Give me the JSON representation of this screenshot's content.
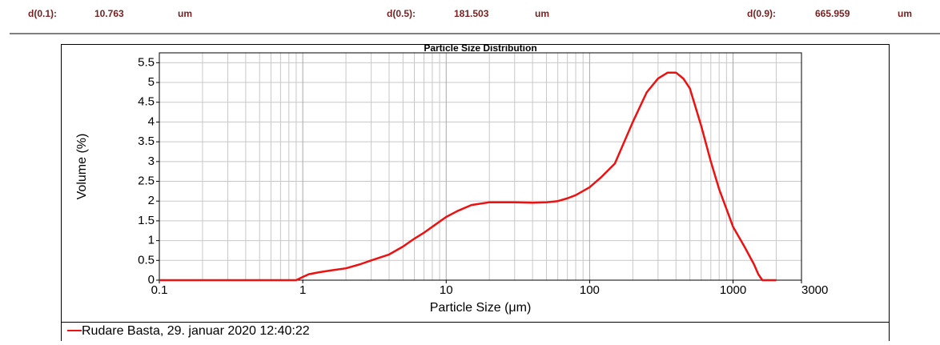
{
  "header": {
    "items": [
      {
        "label": "d(0.1):",
        "value": "10.763",
        "unit": "um"
      },
      {
        "label": "d(0.5):",
        "value": "181.503",
        "unit": "um"
      },
      {
        "label": "d(0.9):",
        "value": "665.959",
        "unit": "um"
      }
    ]
  },
  "chart_data": {
    "type": "line",
    "title": "Particle Size Distribution",
    "x_label": "Particle Size (μm)",
    "y_label": "Volume (%)",
    "x_scale": "log",
    "grid": true,
    "xlim": [
      0.1,
      3000
    ],
    "xticks": [
      0.1,
      1,
      10,
      100,
      1000,
      3000
    ],
    "ylim": [
      0,
      5.75
    ],
    "yticks": [
      0,
      0.5,
      1,
      1.5,
      2,
      2.5,
      3,
      3.5,
      4,
      4.5,
      5,
      5.5
    ],
    "x": [
      0.1,
      0.2,
      0.5,
      0.9,
      1.0,
      1.1,
      1.3,
      1.6,
      2,
      2.5,
      3,
      4,
      5,
      6,
      7,
      8,
      10,
      12,
      15,
      20,
      30,
      40,
      50,
      60,
      70,
      80,
      100,
      120,
      150,
      200,
      250,
      300,
      350,
      400,
      450,
      500,
      600,
      700,
      800,
      900,
      1000,
      1200,
      1400,
      1500,
      1600,
      2000
    ],
    "series": [
      {
        "name": "Rudare Basta, 29. januar 2020 12:40:22",
        "color": "#ee1111",
        "values": [
          0,
          0,
          0,
          0,
          0.08,
          0.15,
          0.2,
          0.25,
          0.3,
          0.4,
          0.5,
          0.65,
          0.85,
          1.05,
          1.2,
          1.35,
          1.6,
          1.75,
          1.9,
          1.97,
          1.97,
          1.96,
          1.97,
          2.0,
          2.07,
          2.15,
          2.35,
          2.6,
          2.95,
          4.0,
          4.75,
          5.1,
          5.25,
          5.25,
          5.1,
          4.85,
          3.9,
          3.0,
          2.3,
          1.8,
          1.35,
          0.85,
          0.4,
          0.15,
          0,
          0
        ]
      }
    ]
  }
}
